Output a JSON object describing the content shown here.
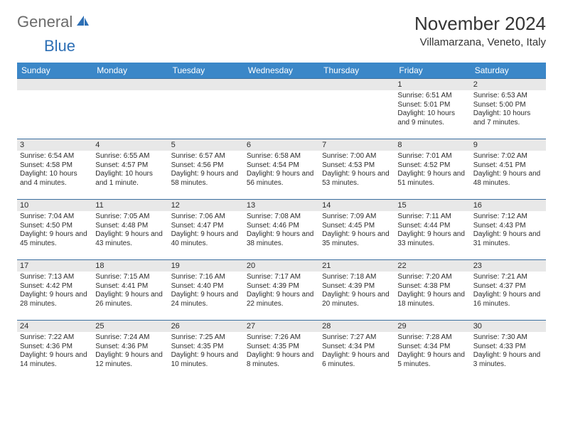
{
  "brand": {
    "word1": "General",
    "word2": "Blue"
  },
  "title": "November 2024",
  "location": "Villamarzana, Veneto, Italy",
  "colors": {
    "header_bg": "#3b87c8",
    "header_text": "#ffffff",
    "daynum_bg": "#e8e8e8",
    "border": "#3b6fa0",
    "text": "#2c2c2c",
    "logo_gray": "#6b6b6b",
    "logo_blue": "#2d6fb5"
  },
  "day_names": [
    "Sunday",
    "Monday",
    "Tuesday",
    "Wednesday",
    "Thursday",
    "Friday",
    "Saturday"
  ],
  "weeks": [
    [
      null,
      null,
      null,
      null,
      null,
      {
        "n": "1",
        "sunrise": "Sunrise: 6:51 AM",
        "sunset": "Sunset: 5:01 PM",
        "daylight": "Daylight: 10 hours and 9 minutes."
      },
      {
        "n": "2",
        "sunrise": "Sunrise: 6:53 AM",
        "sunset": "Sunset: 5:00 PM",
        "daylight": "Daylight: 10 hours and 7 minutes."
      }
    ],
    [
      {
        "n": "3",
        "sunrise": "Sunrise: 6:54 AM",
        "sunset": "Sunset: 4:58 PM",
        "daylight": "Daylight: 10 hours and 4 minutes."
      },
      {
        "n": "4",
        "sunrise": "Sunrise: 6:55 AM",
        "sunset": "Sunset: 4:57 PM",
        "daylight": "Daylight: 10 hours and 1 minute."
      },
      {
        "n": "5",
        "sunrise": "Sunrise: 6:57 AM",
        "sunset": "Sunset: 4:56 PM",
        "daylight": "Daylight: 9 hours and 58 minutes."
      },
      {
        "n": "6",
        "sunrise": "Sunrise: 6:58 AM",
        "sunset": "Sunset: 4:54 PM",
        "daylight": "Daylight: 9 hours and 56 minutes."
      },
      {
        "n": "7",
        "sunrise": "Sunrise: 7:00 AM",
        "sunset": "Sunset: 4:53 PM",
        "daylight": "Daylight: 9 hours and 53 minutes."
      },
      {
        "n": "8",
        "sunrise": "Sunrise: 7:01 AM",
        "sunset": "Sunset: 4:52 PM",
        "daylight": "Daylight: 9 hours and 51 minutes."
      },
      {
        "n": "9",
        "sunrise": "Sunrise: 7:02 AM",
        "sunset": "Sunset: 4:51 PM",
        "daylight": "Daylight: 9 hours and 48 minutes."
      }
    ],
    [
      {
        "n": "10",
        "sunrise": "Sunrise: 7:04 AM",
        "sunset": "Sunset: 4:50 PM",
        "daylight": "Daylight: 9 hours and 45 minutes."
      },
      {
        "n": "11",
        "sunrise": "Sunrise: 7:05 AM",
        "sunset": "Sunset: 4:48 PM",
        "daylight": "Daylight: 9 hours and 43 minutes."
      },
      {
        "n": "12",
        "sunrise": "Sunrise: 7:06 AM",
        "sunset": "Sunset: 4:47 PM",
        "daylight": "Daylight: 9 hours and 40 minutes."
      },
      {
        "n": "13",
        "sunrise": "Sunrise: 7:08 AM",
        "sunset": "Sunset: 4:46 PM",
        "daylight": "Daylight: 9 hours and 38 minutes."
      },
      {
        "n": "14",
        "sunrise": "Sunrise: 7:09 AM",
        "sunset": "Sunset: 4:45 PM",
        "daylight": "Daylight: 9 hours and 35 minutes."
      },
      {
        "n": "15",
        "sunrise": "Sunrise: 7:11 AM",
        "sunset": "Sunset: 4:44 PM",
        "daylight": "Daylight: 9 hours and 33 minutes."
      },
      {
        "n": "16",
        "sunrise": "Sunrise: 7:12 AM",
        "sunset": "Sunset: 4:43 PM",
        "daylight": "Daylight: 9 hours and 31 minutes."
      }
    ],
    [
      {
        "n": "17",
        "sunrise": "Sunrise: 7:13 AM",
        "sunset": "Sunset: 4:42 PM",
        "daylight": "Daylight: 9 hours and 28 minutes."
      },
      {
        "n": "18",
        "sunrise": "Sunrise: 7:15 AM",
        "sunset": "Sunset: 4:41 PM",
        "daylight": "Daylight: 9 hours and 26 minutes."
      },
      {
        "n": "19",
        "sunrise": "Sunrise: 7:16 AM",
        "sunset": "Sunset: 4:40 PM",
        "daylight": "Daylight: 9 hours and 24 minutes."
      },
      {
        "n": "20",
        "sunrise": "Sunrise: 7:17 AM",
        "sunset": "Sunset: 4:39 PM",
        "daylight": "Daylight: 9 hours and 22 minutes."
      },
      {
        "n": "21",
        "sunrise": "Sunrise: 7:18 AM",
        "sunset": "Sunset: 4:39 PM",
        "daylight": "Daylight: 9 hours and 20 minutes."
      },
      {
        "n": "22",
        "sunrise": "Sunrise: 7:20 AM",
        "sunset": "Sunset: 4:38 PM",
        "daylight": "Daylight: 9 hours and 18 minutes."
      },
      {
        "n": "23",
        "sunrise": "Sunrise: 7:21 AM",
        "sunset": "Sunset: 4:37 PM",
        "daylight": "Daylight: 9 hours and 16 minutes."
      }
    ],
    [
      {
        "n": "24",
        "sunrise": "Sunrise: 7:22 AM",
        "sunset": "Sunset: 4:36 PM",
        "daylight": "Daylight: 9 hours and 14 minutes."
      },
      {
        "n": "25",
        "sunrise": "Sunrise: 7:24 AM",
        "sunset": "Sunset: 4:36 PM",
        "daylight": "Daylight: 9 hours and 12 minutes."
      },
      {
        "n": "26",
        "sunrise": "Sunrise: 7:25 AM",
        "sunset": "Sunset: 4:35 PM",
        "daylight": "Daylight: 9 hours and 10 minutes."
      },
      {
        "n": "27",
        "sunrise": "Sunrise: 7:26 AM",
        "sunset": "Sunset: 4:35 PM",
        "daylight": "Daylight: 9 hours and 8 minutes."
      },
      {
        "n": "28",
        "sunrise": "Sunrise: 7:27 AM",
        "sunset": "Sunset: 4:34 PM",
        "daylight": "Daylight: 9 hours and 6 minutes."
      },
      {
        "n": "29",
        "sunrise": "Sunrise: 7:28 AM",
        "sunset": "Sunset: 4:34 PM",
        "daylight": "Daylight: 9 hours and 5 minutes."
      },
      {
        "n": "30",
        "sunrise": "Sunrise: 7:30 AM",
        "sunset": "Sunset: 4:33 PM",
        "daylight": "Daylight: 9 hours and 3 minutes."
      }
    ]
  ]
}
